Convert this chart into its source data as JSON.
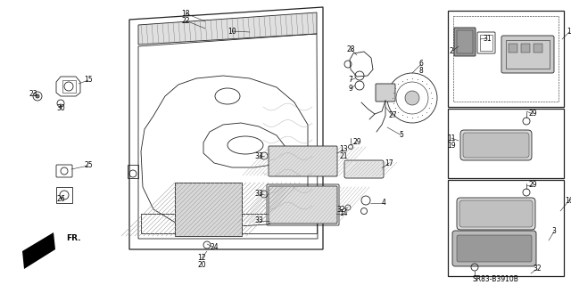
{
  "bg_color": "#ffffff",
  "line_color": "#000000",
  "diagram_code": "SR83-B3910B",
  "fig_width": 6.4,
  "fig_height": 3.2,
  "dpi": 100
}
